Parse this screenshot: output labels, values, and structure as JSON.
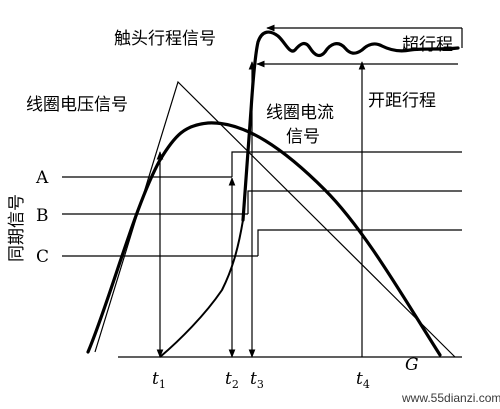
{
  "labels": {
    "contact_travel": "触头行程信号",
    "coil_voltage": "线圈电压信号",
    "coil_current_l1": "线圈电流",
    "coil_current_l2": "信号",
    "overtravel": "超行程",
    "opening_distance": "开距行程",
    "sync_signal": "同期信号"
  },
  "phases": [
    "A",
    "B",
    "C"
  ],
  "time_marks": [
    {
      "t": "t",
      "sub": "1"
    },
    {
      "t": "t",
      "sub": "2"
    },
    {
      "t": "t",
      "sub": "3"
    },
    {
      "t": "t",
      "sub": "4"
    }
  ],
  "ground_label": "G",
  "watermark": "www.55dianzi.com"
}
